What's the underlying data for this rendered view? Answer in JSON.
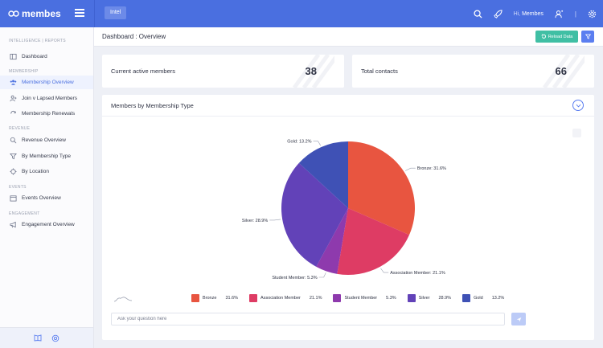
{
  "brand": {
    "name": "membes",
    "icon": "membes-logo-icon"
  },
  "topbar": {
    "tab": "Intel",
    "greeting": "Hi,",
    "user": "Membes",
    "separator": "|"
  },
  "sidebar": {
    "sections": [
      {
        "label": "INTELLIGENCE | REPORTS",
        "items": [
          {
            "label": "Dashboard",
            "icon": "dashboard-icon"
          }
        ]
      },
      {
        "label": "MEMBERSHIP",
        "items": [
          {
            "label": "Membership Overview",
            "icon": "users-icon",
            "active": true
          },
          {
            "label": "Join v Lapsed Members",
            "icon": "user-plus-icon"
          },
          {
            "label": "Membership Renewals",
            "icon": "renew-icon"
          }
        ]
      },
      {
        "label": "REVENUE",
        "items": [
          {
            "label": "Revenue Overview",
            "icon": "search-icon"
          },
          {
            "label": "By Membership Type",
            "icon": "filter-icon"
          },
          {
            "label": "By Location",
            "icon": "location-icon"
          }
        ]
      },
      {
        "label": "EVENTS",
        "items": [
          {
            "label": "Events Overview",
            "icon": "calendar-icon"
          }
        ]
      },
      {
        "label": "ENGAGEMENT",
        "items": [
          {
            "label": "Engagement Overview",
            "icon": "megaphone-icon"
          }
        ]
      }
    ]
  },
  "header": {
    "title": "Dashboard : Overview",
    "reload_label": "Reload Data"
  },
  "stats": [
    {
      "label": "Current active members",
      "value": "38"
    },
    {
      "label": "Total contacts",
      "value": "66"
    }
  ],
  "panel": {
    "title": "Members by Membership Type",
    "ask_placeholder": "Ask your question here"
  },
  "colors": {
    "accent": "#4a6fe0",
    "reload": "#40bfa4"
  },
  "chart_data": {
    "type": "pie",
    "slices": [
      {
        "label": "Bronze",
        "value": 31.6,
        "display": "Bronze: 31.6%",
        "pct": "31.6%",
        "color": "#e85540"
      },
      {
        "label": "Association Member",
        "value": 21.1,
        "display": "Association Member: 21.1%",
        "pct": "21.1%",
        "color": "#de3c64"
      },
      {
        "label": "Student Member",
        "value": 5.3,
        "display": "Student Member: 5.3%",
        "pct": "5.3%",
        "color": "#8e3aad"
      },
      {
        "label": "Silver",
        "value": 28.9,
        "display": "Silver: 28.9%",
        "pct": "28.9%",
        "color": "#6242b8"
      },
      {
        "label": "Gold",
        "value": 13.2,
        "display": "Gold: 13.2%",
        "pct": "13.2%",
        "color": "#3f51b5"
      }
    ],
    "legend_position": "bottom"
  }
}
